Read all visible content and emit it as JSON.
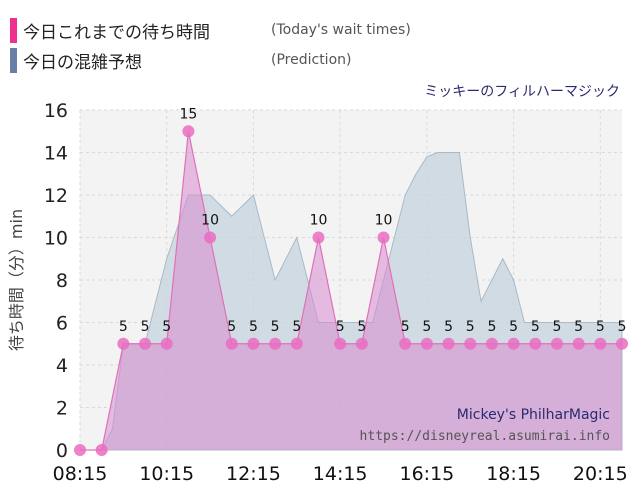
{
  "legend": {
    "today_label": "今日これまでの待ち時間",
    "today_label_en": "(Today's wait times)",
    "today_color": "#f0308e",
    "pred_label": "今日の混雑予想",
    "pred_label_en": "(Prediction)",
    "pred_color": "#6a7fa8"
  },
  "attraction_title": "ミッキーのフィルハーマジック",
  "watermark": {
    "name_en": "Mickey's PhilharMagic",
    "url": "https://disneyreal.asumirai.info"
  },
  "chart_data": {
    "type": "area",
    "ylabel": "待ち時間（分）min",
    "ylim": [
      0,
      16
    ],
    "yticks": [
      "0",
      "2",
      "4",
      "6",
      "8",
      "10",
      "12",
      "14",
      "16"
    ],
    "xticks": [
      "08:15",
      "10:15",
      "12:15",
      "14:15",
      "16:15",
      "18:15",
      "20:15"
    ],
    "xlim": [
      "08:15",
      "20:45"
    ],
    "grid": true,
    "series": [
      {
        "name": "今日これまでの待ち時間",
        "color": "#f0308e",
        "x": [
          "08:15",
          "08:45",
          "09:15",
          "09:45",
          "10:15",
          "10:45",
          "11:15",
          "11:45",
          "12:15",
          "12:45",
          "13:15",
          "13:45",
          "14:15",
          "14:45",
          "15:15",
          "15:45",
          "16:15",
          "16:45",
          "17:15",
          "17:45",
          "18:15",
          "18:45",
          "19:15",
          "19:45",
          "20:15",
          "20:45"
        ],
        "y": [
          0,
          0,
          5,
          5,
          5,
          15,
          10,
          5,
          5,
          5,
          5,
          10,
          5,
          5,
          10,
          5,
          5,
          5,
          5,
          5,
          5,
          5,
          5,
          5,
          5,
          5
        ],
        "labels": [
          "",
          "",
          "5",
          "5",
          "5",
          "15",
          "10",
          "5",
          "5",
          "5",
          "5",
          "10",
          "5",
          "5",
          "10",
          "5",
          "5",
          "5",
          "5",
          "5",
          "5",
          "5",
          "5",
          "5",
          "5",
          "5"
        ]
      },
      {
        "name": "今日の混雑予想",
        "color": "#6a7fa8",
        "x": [
          "08:15",
          "08:30",
          "08:45",
          "09:00",
          "09:15",
          "09:30",
          "09:45",
          "10:00",
          "10:15",
          "10:30",
          "10:45",
          "11:00",
          "11:15",
          "11:30",
          "11:45",
          "12:00",
          "12:15",
          "12:30",
          "12:45",
          "13:00",
          "13:15",
          "13:30",
          "13:45",
          "14:00",
          "14:15",
          "14:30",
          "14:45",
          "15:00",
          "15:15",
          "15:30",
          "15:45",
          "16:00",
          "16:15",
          "16:30",
          "16:45",
          "17:00",
          "17:15",
          "17:30",
          "17:45",
          "18:00",
          "18:15",
          "18:30",
          "18:45",
          "19:00",
          "19:15",
          "19:30",
          "19:45",
          "20:00",
          "20:15",
          "20:30",
          "20:45"
        ],
        "y": [
          0,
          0,
          0,
          1,
          5,
          5,
          5,
          7,
          9,
          10.5,
          12,
          12,
          12,
          11.5,
          11,
          11.5,
          12,
          10,
          8,
          9,
          10,
          8,
          6,
          6,
          6,
          6,
          6,
          6,
          8,
          10,
          12,
          13,
          13.8,
          14,
          14,
          14,
          10,
          7,
          8,
          9,
          8,
          6,
          6,
          6,
          6,
          6,
          6,
          6,
          6,
          6,
          6
        ]
      }
    ]
  }
}
